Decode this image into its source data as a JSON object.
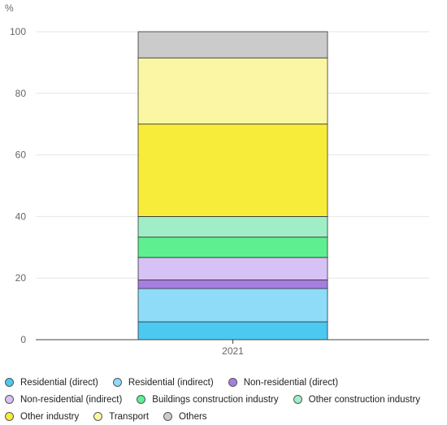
{
  "chart_data": {
    "type": "bar",
    "stacked": true,
    "y_unit_label": "%",
    "categories": [
      "2021"
    ],
    "ylim": [
      0,
      100
    ],
    "yticks": [
      0,
      20,
      40,
      60,
      80,
      100
    ],
    "grid": true,
    "legend_placement": "bottom",
    "series": [
      {
        "name": "Residential (direct)",
        "values": [
          5.8
        ],
        "color": "#4cc9f0"
      },
      {
        "name": "Residential (indirect)",
        "values": [
          10.8
        ],
        "color": "#8edcf7"
      },
      {
        "name": "Non-residential (direct)",
        "values": [
          2.8
        ],
        "color": "#a57ee0"
      },
      {
        "name": "Non-residential (indirect)",
        "values": [
          7.3
        ],
        "color": "#d6c2f5"
      },
      {
        "name": "Buildings construction industry",
        "values": [
          6.6
        ],
        "color": "#5ef090"
      },
      {
        "name": "Other construction industry",
        "values": [
          6.7
        ],
        "color": "#a0eec8"
      },
      {
        "name": "Other industry",
        "values": [
          30.0
        ],
        "color": "#f8ec3a"
      },
      {
        "name": "Transport",
        "values": [
          21.5
        ],
        "color": "#fbf6a3"
      },
      {
        "name": "Others",
        "values": [
          8.5
        ],
        "color": "#cbcbcb"
      }
    ]
  }
}
